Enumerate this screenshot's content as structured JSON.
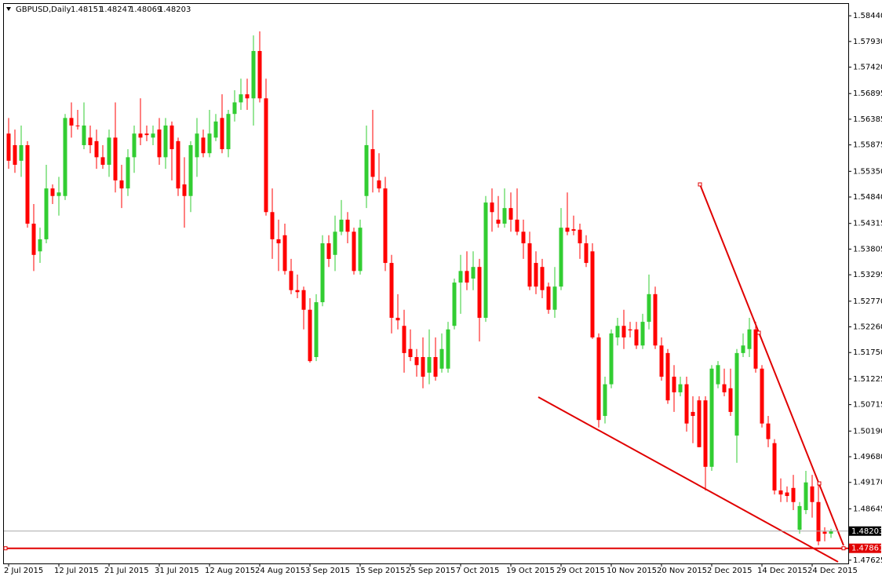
{
  "chart_data": {
    "type": "candlestick",
    "symbol": "GBPUSD,Daily",
    "categories": [
      "2 Jul 2015",
      null,
      null,
      null,
      null,
      null,
      null,
      null,
      "12 Jul 2015",
      null,
      null,
      null,
      null,
      null,
      null,
      null,
      "21 Jul 2015",
      null,
      null,
      null,
      null,
      null,
      null,
      null,
      "31 Jul 2015",
      null,
      null,
      null,
      null,
      null,
      null,
      null,
      "12 Aug 2015",
      null,
      null,
      null,
      null,
      null,
      null,
      null,
      "24 Aug 2015",
      null,
      null,
      null,
      null,
      null,
      null,
      null,
      "3 Sep 2015",
      null,
      null,
      null,
      null,
      null,
      null,
      null,
      "15 Sep 2015",
      null,
      null,
      null,
      null,
      null,
      null,
      null,
      "25 Sep 2015",
      null,
      null,
      null,
      null,
      null,
      null,
      null,
      "7 Oct 2015",
      null,
      null,
      null,
      null,
      null,
      null,
      null,
      "19 Oct 2015",
      null,
      null,
      null,
      null,
      null,
      null,
      null,
      "29 Oct 2015",
      null,
      null,
      null,
      null,
      null,
      null,
      null,
      "10 Nov 2015",
      null,
      null,
      null,
      null,
      null,
      null,
      null,
      "20 Nov 2015",
      null,
      null,
      null,
      null,
      null,
      null,
      null,
      "2 Dec 2015",
      null,
      null,
      null,
      null,
      null,
      null,
      null,
      "14 Dec 2015",
      null,
      null,
      null,
      null,
      null,
      null,
      null,
      "24 Dec 2015",
      null,
      null,
      null
    ],
    "open": [
      1.561,
      1.5587,
      1.5556,
      1.5587,
      1.5431,
      1.5376,
      1.54,
      1.5501,
      1.5486,
      1.5486,
      1.5641,
      1.5626,
      1.5587,
      1.5602,
      1.5595,
      1.5563,
      1.5548,
      1.5602,
      1.5517,
      1.5501,
      1.5563,
      1.561,
      1.561,
      1.5602,
      1.5618,
      1.5563,
      1.5626,
      1.5595,
      1.5509,
      1.5486,
      1.5563,
      1.5602,
      1.5571,
      1.5602,
      1.5641,
      1.5579,
      1.5649,
      1.5672,
      1.5688,
      1.568,
      1.5774,
      1.568,
      1.5454,
      1.54,
      1.5408,
      1.5337,
      1.5299,
      1.5299,
      1.526,
      1.5166,
      1.5275,
      1.5392,
      1.5369,
      1.5415,
      1.5439,
      1.5415,
      1.5337,
      1.5486,
      1.5579,
      1.5517,
      1.5501,
      1.5353,
      1.5244,
      1.5228,
      1.5182,
      1.5166,
      1.5166,
      1.5135,
      1.5166,
      1.5143,
      1.5143,
      1.5228,
      1.5314,
      1.5337,
      1.5322,
      1.5345,
      1.5244,
      1.5473,
      1.5439,
      1.5431,
      1.5462,
      1.5439,
      1.5415,
      1.5392,
      1.5353,
      1.5345,
      1.5306,
      1.526,
      1.5306,
      1.5423,
      1.542,
      1.5419,
      1.5392,
      1.5376,
      1.5205,
      1.5049,
      1.5112,
      1.5205,
      1.5228,
      1.5221,
      1.5221,
      1.5189,
      1.5236,
      1.5291,
      1.5189,
      1.5174,
      1.5127,
      1.5096,
      1.5112,
      1.5057,
      1.508,
      1.508,
      1.4948,
      1.5112,
      1.5112,
      1.5104,
      1.501,
      1.5174,
      1.5182,
      1.5221,
      1.5143,
      1.5034,
      1.4995,
      1.4901,
      1.4897,
      1.4906,
      1.4823,
      1.4862,
      1.4909,
      1.4878,
      1.4819,
      1.48151
    ],
    "high": [
      1.5641,
      1.5618,
      1.5626,
      1.5595,
      1.547,
      1.5423,
      1.5548,
      1.5509,
      1.5524,
      1.5649,
      1.5672,
      1.5657,
      1.5672,
      1.5626,
      1.5618,
      1.5587,
      1.5618,
      1.5672,
      1.5548,
      1.5579,
      1.5626,
      1.568,
      1.5626,
      1.5626,
      1.5641,
      1.5641,
      1.5634,
      1.5602,
      1.5563,
      1.5595,
      1.5641,
      1.5618,
      1.5657,
      1.5649,
      1.5688,
      1.5657,
      1.5696,
      1.5719,
      1.5719,
      1.5805,
      1.5813,
      1.5719,
      1.5501,
      1.5439,
      1.5431,
      1.5361,
      1.533,
      1.5306,
      1.5283,
      1.5291,
      1.5408,
      1.5408,
      1.5447,
      1.5478,
      1.5454,
      1.5423,
      1.5439,
      1.5626,
      1.5657,
      1.5571,
      1.5524,
      1.5369,
      1.5291,
      1.526,
      1.5221,
      1.5182,
      1.5205,
      1.5221,
      1.5205,
      1.5213,
      1.5236,
      1.5322,
      1.5369,
      1.5376,
      1.5376,
      1.5361,
      1.5486,
      1.5501,
      1.5486,
      1.5501,
      1.5493,
      1.5501,
      1.5439,
      1.5415,
      1.5376,
      1.5361,
      1.5314,
      1.5345,
      1.5462,
      1.5493,
      1.5447,
      1.5431,
      1.5408,
      1.5392,
      1.5213,
      1.5127,
      1.5221,
      1.5244,
      1.526,
      1.5236,
      1.5236,
      1.5252,
      1.533,
      1.5306,
      1.5205,
      1.5182,
      1.515,
      1.5127,
      1.5127,
      1.5088,
      1.5088,
      1.5088,
      1.515,
      1.5158,
      1.5143,
      1.5143,
      1.5182,
      1.5213,
      1.5244,
      1.5236,
      1.515,
      1.5049,
      1.5003,
      1.4925,
      1.4909,
      1.4932,
      1.4878,
      1.494,
      1.4932,
      1.4917,
      1.4828,
      1.48247
    ],
    "low": [
      1.554,
      1.5532,
      1.5524,
      1.5423,
      1.5337,
      1.5353,
      1.5392,
      1.547,
      1.5447,
      1.5478,
      1.5602,
      1.5618,
      1.5579,
      1.5571,
      1.554,
      1.554,
      1.5524,
      1.5493,
      1.5462,
      1.5486,
      1.5532,
      1.5587,
      1.5595,
      1.5587,
      1.5548,
      1.554,
      1.5517,
      1.5486,
      1.5423,
      1.5454,
      1.5524,
      1.5563,
      1.5563,
      1.5595,
      1.5571,
      1.5563,
      1.5634,
      1.5657,
      1.5657,
      1.5626,
      1.5672,
      1.5447,
      1.5361,
      1.5337,
      1.533,
      1.5291,
      1.5283,
      1.5221,
      1.5155,
      1.5158,
      1.5267,
      1.5345,
      1.5337,
      1.5408,
      1.5392,
      1.533,
      1.533,
      1.5462,
      1.5493,
      1.5493,
      1.5337,
      1.5213,
      1.5221,
      1.5135,
      1.5158,
      1.5127,
      1.5104,
      1.5112,
      1.5119,
      1.5135,
      1.5135,
      1.5221,
      1.5252,
      1.5299,
      1.5299,
      1.5197,
      1.5236,
      1.5415,
      1.5423,
      1.5423,
      1.5415,
      1.5408,
      1.5361,
      1.5299,
      1.5291,
      1.5283,
      1.5252,
      1.5244,
      1.5299,
      1.5408,
      1.5408,
      1.5361,
      1.5345,
      1.5202,
      1.5026,
      1.5034,
      1.5104,
      1.5189,
      1.5182,
      1.5205,
      1.5182,
      1.5182,
      1.5221,
      1.5182,
      1.5119,
      1.5073,
      1.5057,
      1.5088,
      1.5018,
      1.4995,
      1.4987,
      1.4901,
      1.494,
      1.5104,
      1.5088,
      1.5049,
      1.4956,
      1.5166,
      1.5166,
      1.5135,
      1.5026,
      1.4987,
      1.4893,
      1.4878,
      1.4878,
      1.4862,
      1.4815,
      1.4854,
      1.4847,
      1.4792,
      1.48,
      1.48069
    ],
    "close": [
      1.5556,
      1.5548,
      1.5587,
      1.5431,
      1.5369,
      1.54,
      1.5501,
      1.5486,
      1.5493,
      1.5641,
      1.5626,
      1.5625,
      1.5626,
      1.5587,
      1.5563,
      1.5548,
      1.5602,
      1.5517,
      1.5501,
      1.5563,
      1.561,
      1.5602,
      1.5607,
      1.561,
      1.5563,
      1.5626,
      1.5579,
      1.5501,
      1.5486,
      1.5587,
      1.561,
      1.5571,
      1.561,
      1.5634,
      1.5579,
      1.5649,
      1.5672,
      1.5688,
      1.568,
      1.5774,
      1.568,
      1.5454,
      1.54,
      1.5392,
      1.5337,
      1.5299,
      1.5295,
      1.526,
      1.5158,
      1.5275,
      1.5392,
      1.5361,
      1.5415,
      1.5439,
      1.5415,
      1.5337,
      1.5423,
      1.5587,
      1.5524,
      1.5501,
      1.5353,
      1.5244,
      1.5239,
      1.5174,
      1.5166,
      1.515,
      1.5127,
      1.5166,
      1.5127,
      1.5182,
      1.5221,
      1.5314,
      1.5337,
      1.5314,
      1.5345,
      1.5244,
      1.5473,
      1.5454,
      1.5431,
      1.5462,
      1.5439,
      1.5415,
      1.5392,
      1.5306,
      1.5306,
      1.5299,
      1.526,
      1.5306,
      1.5423,
      1.5415,
      1.5417,
      1.5392,
      1.5353,
      1.5205,
      1.5041,
      1.5112,
      1.5213,
      1.5228,
      1.5205,
      1.5219,
      1.5189,
      1.5236,
      1.5291,
      1.5189,
      1.5127,
      1.508,
      1.5096,
      1.5112,
      1.5034,
      1.5049,
      1.4987,
      1.4948,
      1.5143,
      1.515,
      1.5096,
      1.5057,
      1.5174,
      1.5189,
      1.5221,
      1.5143,
      1.5034,
      1.5003,
      1.4901,
      1.4893,
      1.489,
      1.4878,
      1.487,
      1.4917,
      1.4878,
      1.48,
      1.4815,
      1.48203
    ],
    "up_color": "#32cd32",
    "down_color": "#ff0000",
    "ylim": [
      1.4756,
      1.5866
    ],
    "yticks": [
      {
        "value": 1.5844,
        "label": "1.58440"
      },
      {
        "value": 1.5793,
        "label": "1.57930"
      },
      {
        "value": 1.5742,
        "label": "1.57420"
      },
      1.56895,
      1.56385,
      1.55875,
      {
        "value": 1.5535,
        "label": "1.55350"
      },
      {
        "value": 1.5484,
        "label": "1.54840"
      },
      1.54315,
      1.53805,
      1.53295,
      {
        "value": 1.5277,
        "label": "1.52770"
      },
      {
        "value": 1.5226,
        "label": "1.52260"
      },
      {
        "value": 1.5175,
        "label": "1.51750"
      },
      1.51225,
      1.50715,
      {
        "value": 1.5019,
        "label": "1.50190"
      },
      {
        "value": 1.4968,
        "label": "1.49680"
      },
      {
        "value": 1.4917,
        "label": "1.49170"
      },
      1.48645,
      1.47625
    ],
    "horizontal_line": {
      "value": 1.47861,
      "color": "#e00000"
    }
  }
}
